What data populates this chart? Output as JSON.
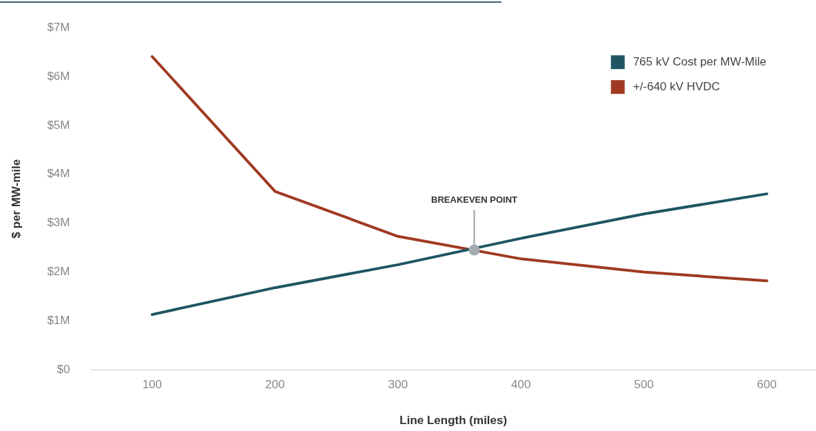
{
  "chart_data": {
    "type": "line",
    "xlabel": "Line Length (miles)",
    "ylabel": "$ per MW-mile",
    "x": [
      100,
      200,
      300,
      400,
      500,
      600
    ],
    "series": [
      {
        "name": "765 kV Cost per MW-Mile",
        "color": "#1f5563",
        "values": [
          1.13,
          1.68,
          2.15,
          2.69,
          3.19,
          3.6
        ]
      },
      {
        "name": "+/-640 kV HVDC",
        "color": "#a03a22",
        "values": [
          6.41,
          3.65,
          2.73,
          2.27,
          2.0,
          1.82
        ]
      }
    ],
    "xlim": [
      50,
      640
    ],
    "xticks": [
      100,
      200,
      300,
      400,
      500,
      600
    ],
    "ylim": [
      0,
      7
    ],
    "yticks": [
      {
        "value": 0,
        "label": "$0"
      },
      {
        "value": 1,
        "label": "$1M"
      },
      {
        "value": 2,
        "label": "$2M"
      },
      {
        "value": 3,
        "label": "$3M"
      },
      {
        "value": 4,
        "label": "$4M"
      },
      {
        "value": 5,
        "label": "$5M"
      },
      {
        "value": 6,
        "label": "$6M"
      },
      {
        "value": 7,
        "label": "$7M"
      }
    ],
    "annotations": [
      {
        "text": "BREAKEVEN POINT",
        "x": 362,
        "y": 2.45
      }
    ],
    "legend": "top right",
    "marker": "none",
    "line_style": "solid"
  }
}
